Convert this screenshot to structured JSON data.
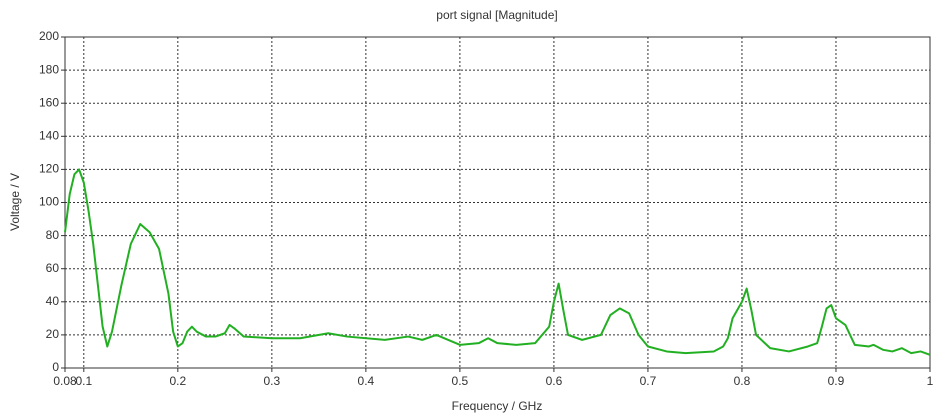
{
  "chart_data": {
    "type": "line",
    "title": "port signal [Magnitude]",
    "x_label": "Frequency / GHz",
    "y_label": "Voltage / V",
    "color": "#22b022",
    "grid": true,
    "xlim": [
      0.08,
      1
    ],
    "ylim": [
      0,
      200
    ],
    "xticks": [
      0.08,
      0.1,
      0.2,
      0.3,
      0.4,
      0.5,
      0.6,
      0.7,
      0.8,
      0.9,
      1
    ],
    "yticks": [
      0,
      20,
      40,
      60,
      80,
      100,
      120,
      140,
      160,
      180,
      200
    ],
    "x": [
      0.08,
      0.085,
      0.09,
      0.095,
      0.1,
      0.105,
      0.11,
      0.115,
      0.12,
      0.125,
      0.13,
      0.14,
      0.15,
      0.16,
      0.17,
      0.18,
      0.19,
      0.195,
      0.2,
      0.205,
      0.21,
      0.215,
      0.22,
      0.23,
      0.24,
      0.25,
      0.255,
      0.26,
      0.27,
      0.3,
      0.33,
      0.36,
      0.38,
      0.42,
      0.445,
      0.46,
      0.475,
      0.5,
      0.52,
      0.53,
      0.54,
      0.56,
      0.58,
      0.595,
      0.6,
      0.605,
      0.61,
      0.615,
      0.63,
      0.65,
      0.66,
      0.67,
      0.68,
      0.69,
      0.7,
      0.72,
      0.74,
      0.77,
      0.78,
      0.785,
      0.79,
      0.8,
      0.805,
      0.81,
      0.815,
      0.83,
      0.85,
      0.87,
      0.88,
      0.885,
      0.89,
      0.895,
      0.9,
      0.91,
      0.915,
      0.92,
      0.935,
      0.94,
      0.95,
      0.96,
      0.97,
      0.98,
      0.99,
      1
    ],
    "values": [
      82,
      105,
      117,
      120,
      112,
      95,
      75,
      50,
      25,
      13,
      22,
      50,
      75,
      87,
      82,
      72,
      45,
      22,
      13,
      15,
      22,
      25,
      22,
      19,
      19,
      21,
      26,
      24,
      19,
      18,
      18,
      21,
      19,
      17,
      19,
      17,
      20,
      14,
      15,
      18,
      15,
      14,
      15,
      25,
      40,
      51,
      35,
      20,
      17,
      20,
      32,
      36,
      33,
      20,
      13,
      10,
      9,
      10,
      13,
      18,
      30,
      40,
      48,
      35,
      20,
      12,
      10,
      13,
      15,
      25,
      36,
      38,
      30,
      26,
      20,
      14,
      13,
      14,
      11,
      10,
      12,
      9,
      10,
      8
    ]
  }
}
